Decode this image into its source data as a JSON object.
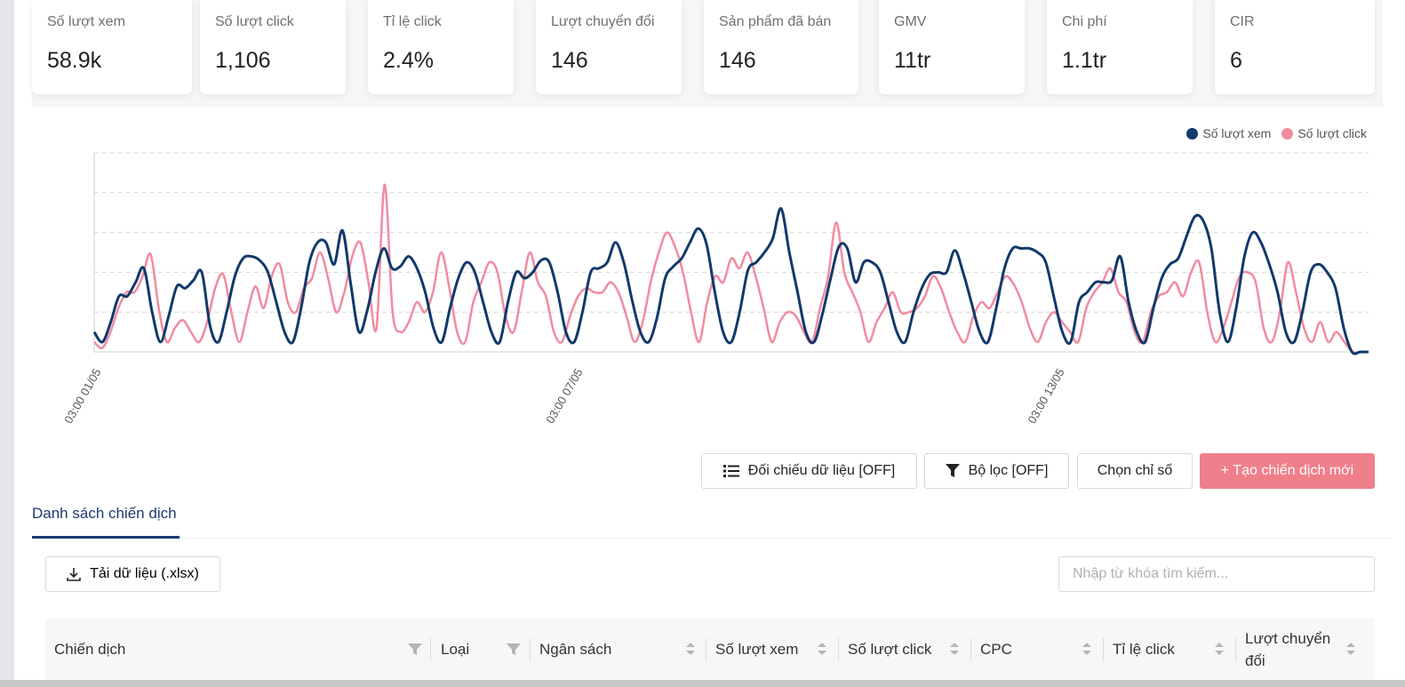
{
  "metrics": [
    {
      "label": "Số lượt xem",
      "value": "58.9k"
    },
    {
      "label": "Số lượt click",
      "value": "1,106"
    },
    {
      "label": "Tỉ lệ click",
      "value": "2.4%"
    },
    {
      "label": "Lượt chuyển đổi",
      "value": "146"
    },
    {
      "label": "Sản phẩm đã bán",
      "value": "146"
    },
    {
      "label": "GMV",
      "value": "11tr"
    },
    {
      "label": "Chi phí",
      "value": "1.1tr"
    },
    {
      "label": "CIR",
      "value": "6"
    }
  ],
  "chart_data": {
    "type": "line",
    "title": "",
    "legend": [
      "Số lượt xem",
      "Số lượt click"
    ],
    "x_tick_labels": [
      "03:00 01/05",
      "03:00 07/05",
      "03:00 13/05"
    ],
    "ylim": [
      0,
      100
    ],
    "y_grid": true,
    "colors": {
      "views": "#12396b",
      "clicks": "#f28ba0"
    },
    "series": [
      {
        "name": "Số lượt xem",
        "values": [
          10,
          5,
          15,
          28,
          28,
          35,
          42,
          20,
          5,
          18,
          33,
          32,
          36,
          40,
          13,
          5,
          20,
          38,
          47,
          48,
          46,
          40,
          25,
          10,
          5,
          22,
          45,
          55,
          55,
          44,
          61,
          34,
          10,
          21,
          40,
          52,
          42,
          43,
          48,
          42,
          30,
          12,
          5,
          22,
          37,
          45,
          40,
          25,
          10,
          5,
          25,
          40,
          37,
          40,
          46,
          45,
          30,
          10,
          5,
          20,
          40,
          42,
          45,
          55,
          45,
          26,
          10,
          5,
          17,
          37,
          43,
          47,
          55,
          62,
          54,
          30,
          10,
          5,
          20,
          41,
          45,
          50,
          57,
          72,
          50,
          30,
          10,
          5,
          19,
          37,
          53,
          52,
          35,
          45,
          45,
          40,
          25,
          10,
          5,
          20,
          32,
          39,
          40,
          40,
          51,
          40,
          25,
          10,
          5,
          22,
          42,
          52,
          52,
          52,
          50,
          45,
          27,
          10,
          5,
          25,
          30,
          35,
          35,
          36,
          48,
          25,
          10,
          5,
          22,
          37,
          44,
          47,
          58,
          68,
          66,
          52,
          20,
          5,
          22,
          48,
          60,
          55,
          44,
          30,
          10,
          5,
          20,
          40,
          44,
          40,
          32,
          12,
          0,
          0,
          0
        ]
      },
      {
        "name": "Số lượt click",
        "values": [
          5,
          2,
          10,
          22,
          30,
          30,
          38,
          49,
          22,
          5,
          12,
          16,
          10,
          5,
          15,
          32,
          39,
          20,
          5,
          20,
          33,
          22,
          38,
          44,
          25,
          20,
          32,
          37,
          50,
          37,
          20,
          30,
          48,
          55,
          35,
          12,
          84,
          20,
          10,
          15,
          25,
          20,
          30,
          50,
          33,
          10,
          5,
          25,
          35,
          45,
          40,
          18,
          10,
          30,
          50,
          35,
          28,
          10,
          5,
          18,
          28,
          32,
          30,
          30,
          35,
          30,
          18,
          5,
          15,
          35,
          50,
          60,
          53,
          40,
          20,
          5,
          25,
          38,
          35,
          47,
          42,
          50,
          38,
          22,
          5,
          15,
          20,
          18,
          10,
          5,
          22,
          38,
          65,
          40,
          30,
          20,
          5,
          15,
          22,
          30,
          20,
          20,
          22,
          28,
          38,
          32,
          20,
          10,
          5,
          18,
          25,
          22,
          30,
          38,
          34,
          25,
          12,
          5,
          15,
          20,
          15,
          10,
          5,
          22,
          30,
          35,
          42,
          30,
          25,
          10,
          5,
          20,
          28,
          30,
          35,
          28,
          40,
          45,
          20,
          5,
          12,
          25,
          38,
          40,
          35,
          12,
          5,
          20,
          45,
          30,
          12,
          5,
          15,
          5,
          10,
          5,
          0,
          0,
          0
        ]
      }
    ]
  },
  "toolbar": {
    "compare_label": "Đối chiếu dữ liệu [OFF]",
    "filter_label": "Bộ lọc [OFF]",
    "metrics_label": "Chọn chỉ số",
    "create_label": "+ Tạo chiến dịch mới"
  },
  "tabs": {
    "active": "Danh sách chiến dịch"
  },
  "download_label": "Tải dữ liệu (.xlsx)",
  "search": {
    "placeholder": "Nhập từ khóa tìm kiếm..."
  },
  "table": {
    "columns": [
      "Chiến dịch",
      "Loại",
      "Ngân sách",
      "Số lượt xem",
      "Số lượt click",
      "CPC",
      "Tỉ lệ click",
      "Lượt chuyển đổi"
    ]
  }
}
